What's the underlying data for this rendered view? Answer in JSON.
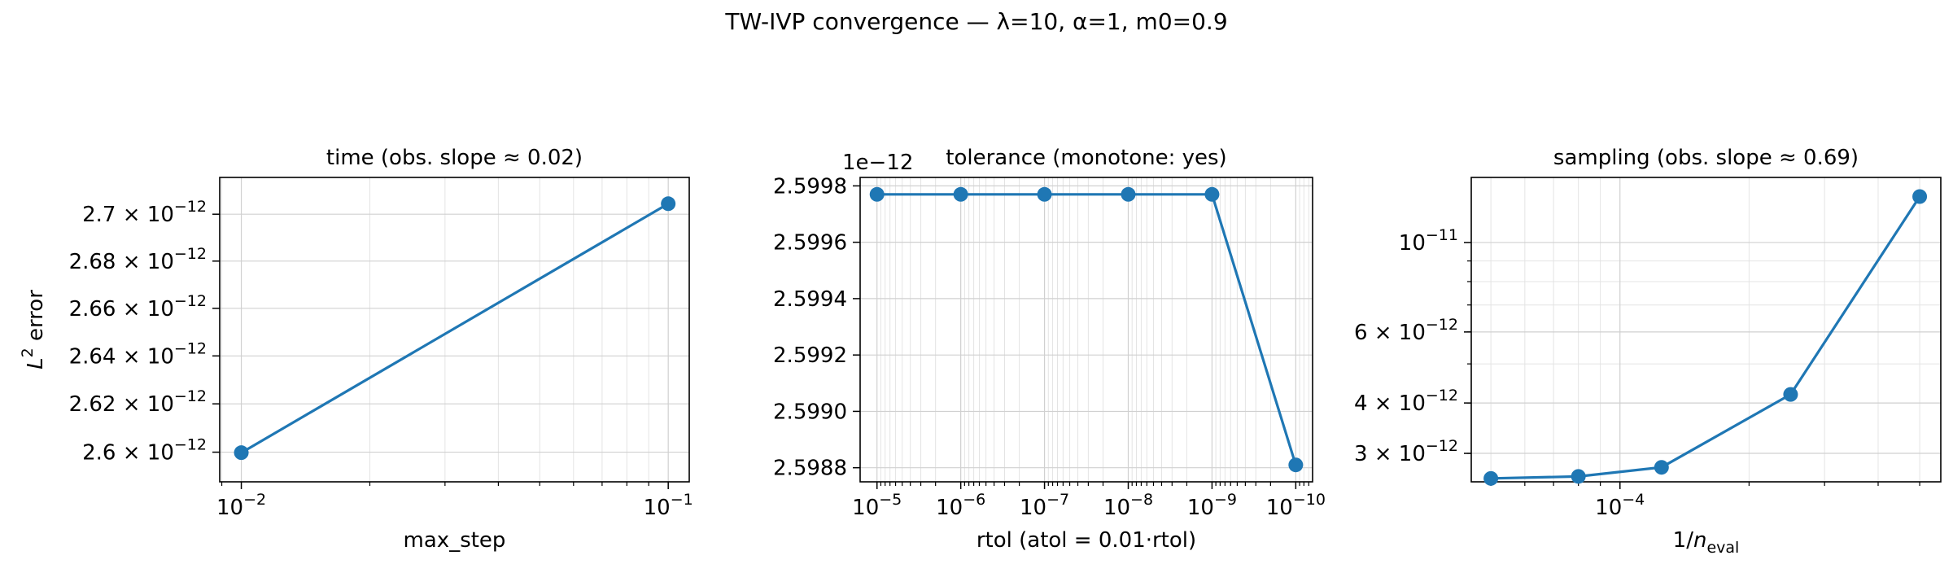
{
  "figure": {
    "suptitle": "TW-IVP convergence — λ=10, α=1, m0=0.9"
  },
  "chart_data": [
    {
      "type": "line",
      "title": "time (obs. slope ≈ 0.02)",
      "xlabel": "max_step",
      "ylabel": "L² error",
      "xscale": "log",
      "yscale": "log",
      "xlim": [
        0.0089,
        0.112
      ],
      "ylim": [
        2.5878e-12,
        2.7158e-12
      ],
      "x": [
        0.01,
        0.1
      ],
      "y": [
        2.5998e-12,
        2.7045e-12
      ],
      "xticks": [
        {
          "v": 0.01,
          "b": "10",
          "e": "−2"
        },
        {
          "v": 0.1,
          "b": "10",
          "e": "−1"
        }
      ],
      "yticks": [
        {
          "v": 2.6e-12,
          "m": "2.6",
          "b": "10",
          "e": "−12"
        },
        {
          "v": 2.62e-12,
          "m": "2.62",
          "b": "10",
          "e": "−12"
        },
        {
          "v": 2.64e-12,
          "m": "2.64",
          "b": "10",
          "e": "−12"
        },
        {
          "v": 2.66e-12,
          "m": "2.66",
          "b": "10",
          "e": "−12"
        },
        {
          "v": 2.68e-12,
          "m": "2.68",
          "b": "10",
          "e": "−12"
        },
        {
          "v": 2.7e-12,
          "m": "2.7",
          "b": "10",
          "e": "−12"
        }
      ],
      "grid": true,
      "color": "#1f77b4"
    },
    {
      "type": "line",
      "title": "tolerance (monotone: yes)",
      "xlabel": "rtol (atol = 0.01·rtol)",
      "offset_text": "1e−12",
      "xscale": "log",
      "xinverted": true,
      "yscale": "linear",
      "xlim": [
        1.59e-05,
        6.3e-11
      ],
      "ylim": [
        2.59875,
        2.59983
      ],
      "x": [
        1e-05,
        1e-06,
        1e-07,
        1e-08,
        1e-09,
        1e-10
      ],
      "y": [
        2.59977,
        2.59977,
        2.59977,
        2.59977,
        2.59977,
        2.59881
      ],
      "xticks": [
        {
          "v": 1e-05,
          "b": "10",
          "e": "−5"
        },
        {
          "v": 1e-06,
          "b": "10",
          "e": "−6"
        },
        {
          "v": 1e-07,
          "b": "10",
          "e": "−7"
        },
        {
          "v": 1e-08,
          "b": "10",
          "e": "−8"
        },
        {
          "v": 1e-09,
          "b": "10",
          "e": "−9"
        },
        {
          "v": 1e-10,
          "b": "10",
          "e": "−10"
        }
      ],
      "yticks": [
        {
          "v": 2.5988,
          "t": "2.5988"
        },
        {
          "v": 2.599,
          "t": "2.5990"
        },
        {
          "v": 2.5992,
          "t": "2.5992"
        },
        {
          "v": 2.5994,
          "t": "2.5994"
        },
        {
          "v": 2.5996,
          "t": "2.5996"
        },
        {
          "v": 2.5998,
          "t": "2.5998"
        }
      ],
      "grid": true,
      "color": "#1f77b4"
    },
    {
      "type": "line",
      "title": "sampling (obs. slope ≈ 0.69)",
      "xlabel": "1/n",
      "xlabel_sub": "eval",
      "xscale": "log",
      "yscale": "log",
      "xlim": [
        4.5e-05,
        0.00056
      ],
      "ylim": [
        2.55e-12,
        1.45e-11
      ],
      "x": [
        5e-05,
        8e-05,
        0.000125,
        0.00025,
        0.0005
      ],
      "y": [
        2.6e-12,
        2.63e-12,
        2.77e-12,
        4.2e-12,
        1.3e-11
      ],
      "xticks": [
        {
          "v": 0.0001,
          "b": "10",
          "e": "−4"
        }
      ],
      "yticks": [
        {
          "v": 3e-12,
          "m": "3",
          "b": "10",
          "e": "−12"
        },
        {
          "v": 4e-12,
          "m": "4",
          "b": "10",
          "e": "−12"
        },
        {
          "v": 6e-12,
          "m": "6",
          "b": "10",
          "e": "−12"
        },
        {
          "v": 1e-11,
          "b": "10",
          "e": "−11"
        }
      ],
      "grid": true,
      "color": "#1f77b4"
    }
  ]
}
